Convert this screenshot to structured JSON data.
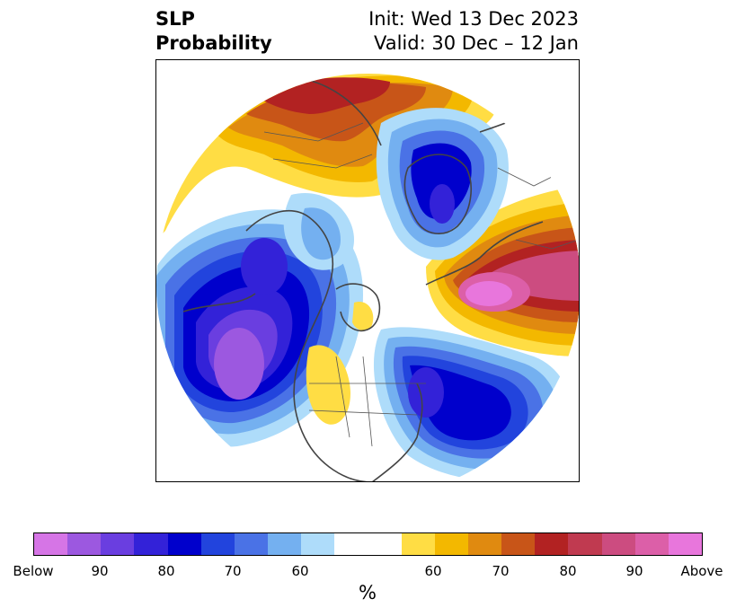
{
  "title": {
    "left_line1": "SLP",
    "left_line2": "Probability",
    "right_line1": "Init: Wed 13 Dec 2023",
    "right_line2": "Valid: 30 Dec – 12 Jan"
  },
  "colorbar": {
    "unit": "%",
    "colors": [
      "#d675e6",
      "#9c58e0",
      "#6a3ee0",
      "#3322d8",
      "#0000cc",
      "#2244dd",
      "#4a72e6",
      "#74b0f0",
      "#aedcfa",
      "#ffffff",
      "#ffdd44",
      "#f3b800",
      "#e08a10",
      "#c85518",
      "#b22222",
      "#c03a50",
      "#cc4c80",
      "#dc5fa8",
      "#e876dc"
    ],
    "ticks": [
      "Below",
      "90",
      "80",
      "70",
      "60",
      "60",
      "70",
      "80",
      "90",
      "Above"
    ]
  },
  "colors": {
    "below_strong": "#9c58e0",
    "below_mid": "#0000cc",
    "below_light": "#aedcfa",
    "above_light": "#ffdd44",
    "above_mid": "#e08a10",
    "above_strong": "#cc4c80"
  }
}
